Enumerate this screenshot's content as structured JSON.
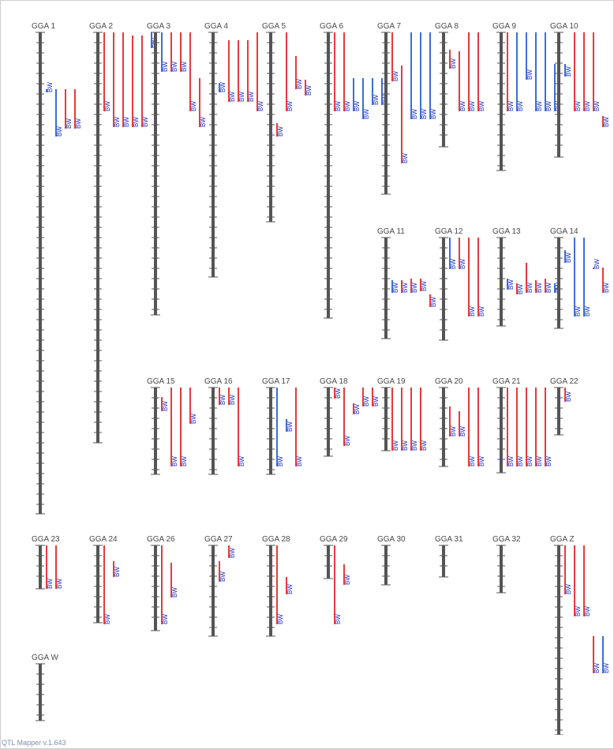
{
  "footer": "QTL Mapper v.1.643",
  "chart_data": {
    "type": "qtl-map",
    "colors": {
      "chromosome": "#555555",
      "qtl_red": "#e83a3a",
      "qtl_blue": "#3a6fd8",
      "label": "#4a4a4a",
      "trait_text": "#1a2fd0"
    },
    "trait_label": "BW",
    "chromosomes": [
      {
        "name": "GGA 1",
        "length": 610,
        "qtls": [
          {
            "s": 72,
            "e": 76,
            "c": "b"
          },
          {
            "s": 72,
            "e": 132,
            "c": "b"
          },
          {
            "s": 72,
            "e": 122,
            "c": "r"
          },
          {
            "s": 72,
            "e": 122,
            "c": "r"
          }
        ]
      },
      {
        "name": "GGA 2",
        "length": 520,
        "qtls": [
          {
            "s": 0,
            "e": 100,
            "c": "r"
          },
          {
            "s": 0,
            "e": 120,
            "c": "r"
          },
          {
            "s": 0,
            "e": 120,
            "c": "r"
          },
          {
            "s": 4,
            "e": 120,
            "c": "r"
          },
          {
            "s": 4,
            "e": 120,
            "c": "r"
          },
          {
            "s": 0,
            "e": 20,
            "c": "b"
          }
        ]
      },
      {
        "name": "GGA 3",
        "length": 358,
        "qtls": [
          {
            "s": 0,
            "e": 50,
            "c": "b"
          },
          {
            "s": 0,
            "e": 50,
            "c": "r"
          },
          {
            "s": 0,
            "e": 50,
            "c": "r"
          },
          {
            "s": 0,
            "e": 100,
            "c": "r"
          },
          {
            "s": 58,
            "e": 120,
            "c": "r"
          }
        ]
      },
      {
        "name": "GGA 4",
        "length": 310,
        "qtls": [
          {
            "s": 64,
            "e": 76,
            "c": "b"
          },
          {
            "s": 10,
            "e": 88,
            "c": "r"
          },
          {
            "s": 10,
            "e": 88,
            "c": "r"
          },
          {
            "s": 10,
            "e": 88,
            "c": "r"
          },
          {
            "s": 0,
            "e": 100,
            "c": "r"
          }
        ]
      },
      {
        "name": "GGA 5",
        "length": 240,
        "qtls": [
          {
            "s": 115,
            "e": 132,
            "c": "r"
          },
          {
            "s": 0,
            "e": 100,
            "c": "r"
          },
          {
            "s": 30,
            "e": 72,
            "c": "r"
          },
          {
            "s": 60,
            "e": 80,
            "c": "r"
          }
        ]
      },
      {
        "name": "GGA 6",
        "length": 362,
        "qtls": [
          {
            "s": 0,
            "e": 100,
            "c": "r"
          },
          {
            "s": 0,
            "e": 100,
            "c": "r"
          },
          {
            "s": 58,
            "e": 100,
            "c": "b"
          },
          {
            "s": 58,
            "e": 110,
            "c": "b"
          },
          {
            "s": 58,
            "e": 92,
            "c": "b"
          },
          {
            "s": 58,
            "e": 92,
            "c": "b"
          }
        ]
      },
      {
        "name": "GGA 7",
        "length": 205,
        "qtls": [
          {
            "s": 0,
            "e": 62,
            "c": "r"
          },
          {
            "s": 42,
            "e": 166,
            "c": "r"
          },
          {
            "s": 0,
            "e": 110,
            "c": "b"
          },
          {
            "s": 0,
            "e": 110,
            "c": "b"
          },
          {
            "s": 0,
            "e": 110,
            "c": "b"
          }
        ]
      },
      {
        "name": "GGA 8",
        "length": 145,
        "qtls": [
          {
            "s": 22,
            "e": 46,
            "c": "r"
          },
          {
            "s": 24,
            "e": 100,
            "c": "r"
          },
          {
            "s": 0,
            "e": 100,
            "c": "r"
          },
          {
            "s": 0,
            "e": 100,
            "c": "r"
          }
        ]
      },
      {
        "name": "GGA 9",
        "length": 175,
        "qtls": [
          {
            "s": 0,
            "e": 100,
            "c": "r"
          },
          {
            "s": 0,
            "e": 100,
            "c": "b"
          },
          {
            "s": 0,
            "e": 60,
            "c": "b"
          },
          {
            "s": 0,
            "e": 100,
            "c": "b"
          },
          {
            "s": 0,
            "e": 100,
            "c": "b"
          },
          {
            "s": 40,
            "e": 100,
            "c": "b"
          }
        ]
      },
      {
        "name": "GGA 10",
        "length": 158,
        "qtls": [
          {
            "s": 40,
            "e": 56,
            "c": "b"
          },
          {
            "s": 0,
            "e": 100,
            "c": "r"
          },
          {
            "s": 0,
            "e": 100,
            "c": "r"
          },
          {
            "s": 0,
            "e": 100,
            "c": "r"
          },
          {
            "s": 106,
            "e": 120,
            "c": "r"
          }
        ]
      },
      {
        "name": "GGA 11",
        "length": 128,
        "qtls": [
          {
            "s": 54,
            "e": 70,
            "c": "b"
          },
          {
            "s": 54,
            "e": 70,
            "c": "r"
          },
          {
            "s": 52,
            "e": 70,
            "c": "r"
          },
          {
            "s": 52,
            "e": 68,
            "c": "r"
          },
          {
            "s": 72,
            "e": 88,
            "c": "r"
          }
        ]
      },
      {
        "name": "GGA 12",
        "length": 130,
        "qtls": [
          {
            "s": 0,
            "e": 40,
            "c": "b"
          },
          {
            "s": 0,
            "e": 40,
            "c": "r"
          },
          {
            "s": 0,
            "e": 100,
            "c": "r"
          },
          {
            "s": 0,
            "e": 100,
            "c": "r"
          }
        ]
      },
      {
        "name": "GGA 13",
        "length": 112,
        "qtls": [
          {
            "s": 52,
            "e": 66,
            "c": "b"
          },
          {
            "s": 58,
            "e": 72,
            "c": "r"
          },
          {
            "s": 32,
            "e": 70,
            "c": "r"
          },
          {
            "s": 54,
            "e": 70,
            "c": "r"
          },
          {
            "s": 52,
            "e": 70,
            "c": "r"
          },
          {
            "s": 58,
            "e": 70,
            "c": "b"
          }
        ]
      },
      {
        "name": "GGA 14",
        "length": 115,
        "qtls": [
          {
            "s": 16,
            "e": 32,
            "c": "b"
          },
          {
            "s": 0,
            "e": 100,
            "c": "b"
          },
          {
            "s": 0,
            "e": 100,
            "c": "b"
          },
          {
            "s": 38,
            "e": 40,
            "c": "r"
          },
          {
            "s": 38,
            "e": 70,
            "c": "r"
          }
        ]
      },
      {
        "name": "GGA 15",
        "length": 110,
        "qtls": [
          {
            "s": 12,
            "e": 30,
            "c": "r"
          },
          {
            "s": 0,
            "e": 100,
            "c": "r"
          },
          {
            "s": 0,
            "e": 100,
            "c": "r"
          },
          {
            "s": 0,
            "e": 46,
            "c": "r"
          }
        ]
      },
      {
        "name": "GGA 16",
        "length": 110,
        "qtls": [
          {
            "s": 0,
            "e": 22,
            "c": "r"
          },
          {
            "s": 0,
            "e": 22,
            "c": "r"
          },
          {
            "s": 0,
            "e": 100,
            "c": "r"
          }
        ]
      },
      {
        "name": "GGA 17",
        "length": 110,
        "qtls": [
          {
            "s": 0,
            "e": 100,
            "c": "b"
          },
          {
            "s": 40,
            "e": 56,
            "c": "b"
          },
          {
            "s": 0,
            "e": 100,
            "c": "r"
          }
        ]
      },
      {
        "name": "GGA 18",
        "length": 87,
        "qtls": [
          {
            "s": 0,
            "e": 14,
            "c": "r"
          },
          {
            "s": 0,
            "e": 74,
            "c": "r"
          },
          {
            "s": 20,
            "e": 34,
            "c": "r"
          },
          {
            "s": 0,
            "e": 24,
            "c": "r"
          },
          {
            "s": 0,
            "e": 24,
            "c": "r"
          }
        ]
      },
      {
        "name": "GGA 19",
        "length": 80,
        "qtls": [
          {
            "s": 0,
            "e": 80,
            "c": "r"
          },
          {
            "s": 0,
            "e": 80,
            "c": "r"
          },
          {
            "s": 0,
            "e": 80,
            "c": "r"
          },
          {
            "s": 0,
            "e": 80,
            "c": "r"
          }
        ]
      },
      {
        "name": "GGA 20",
        "length": 100,
        "qtls": [
          {
            "s": 24,
            "e": 62,
            "c": "r"
          },
          {
            "s": 30,
            "e": 62,
            "c": "r"
          },
          {
            "s": 0,
            "e": 100,
            "c": "r"
          },
          {
            "s": 0,
            "e": 100,
            "c": "r"
          }
        ]
      },
      {
        "name": "GGA 21",
        "length": 108,
        "qtls": [
          {
            "s": 0,
            "e": 100,
            "c": "r"
          },
          {
            "s": 0,
            "e": 100,
            "c": "r"
          },
          {
            "s": 0,
            "e": 100,
            "c": "r"
          },
          {
            "s": 0,
            "e": 100,
            "c": "r"
          },
          {
            "s": 0,
            "e": 100,
            "c": "r"
          }
        ]
      },
      {
        "name": "GGA 22",
        "length": 60,
        "qtls": [
          {
            "s": 0,
            "e": 18,
            "c": "r"
          }
        ]
      },
      {
        "name": "GGA 23",
        "length": 55,
        "qtls": [
          {
            "s": 0,
            "e": 55,
            "c": "r"
          },
          {
            "s": 0,
            "e": 55,
            "c": "r"
          }
        ]
      },
      {
        "name": "GGA 24",
        "length": 98,
        "qtls": [
          {
            "s": 0,
            "e": 100,
            "c": "r"
          },
          {
            "s": 20,
            "e": 40,
            "c": "r"
          }
        ]
      },
      {
        "name": "GGA 26",
        "length": 108,
        "qtls": [
          {
            "s": 0,
            "e": 100,
            "c": "r"
          },
          {
            "s": 22,
            "e": 66,
            "c": "r"
          }
        ]
      },
      {
        "name": "GGA 27",
        "length": 115,
        "qtls": [
          {
            "s": 20,
            "e": 46,
            "c": "r"
          },
          {
            "s": 0,
            "e": 16,
            "c": "r"
          }
        ]
      },
      {
        "name": "GGA 28",
        "length": 115,
        "qtls": [
          {
            "s": 0,
            "e": 100,
            "c": "r"
          },
          {
            "s": 40,
            "e": 62,
            "c": "r"
          }
        ]
      },
      {
        "name": "GGA 29",
        "length": 42,
        "qtls": [
          {
            "s": 0,
            "e": 100,
            "c": "r"
          },
          {
            "s": 24,
            "e": 50,
            "c": "r"
          }
        ]
      },
      {
        "name": "GGA 30",
        "length": 50,
        "qtls": []
      },
      {
        "name": "GGA 31",
        "length": 40,
        "qtls": []
      },
      {
        "name": "GGA 32",
        "length": 60,
        "qtls": []
      },
      {
        "name": "GGA Z",
        "length": 240,
        "qtls": [
          {
            "s": 0,
            "e": 62,
            "c": "r"
          },
          {
            "s": 0,
            "e": 90,
            "c": "r"
          },
          {
            "s": 0,
            "e": 90,
            "c": "r"
          },
          {
            "s": 115,
            "e": 162,
            "c": "r"
          },
          {
            "s": 115,
            "e": 162,
            "c": "b"
          }
        ]
      },
      {
        "name": "GGA W",
        "length": 72,
        "qtls": []
      }
    ]
  }
}
